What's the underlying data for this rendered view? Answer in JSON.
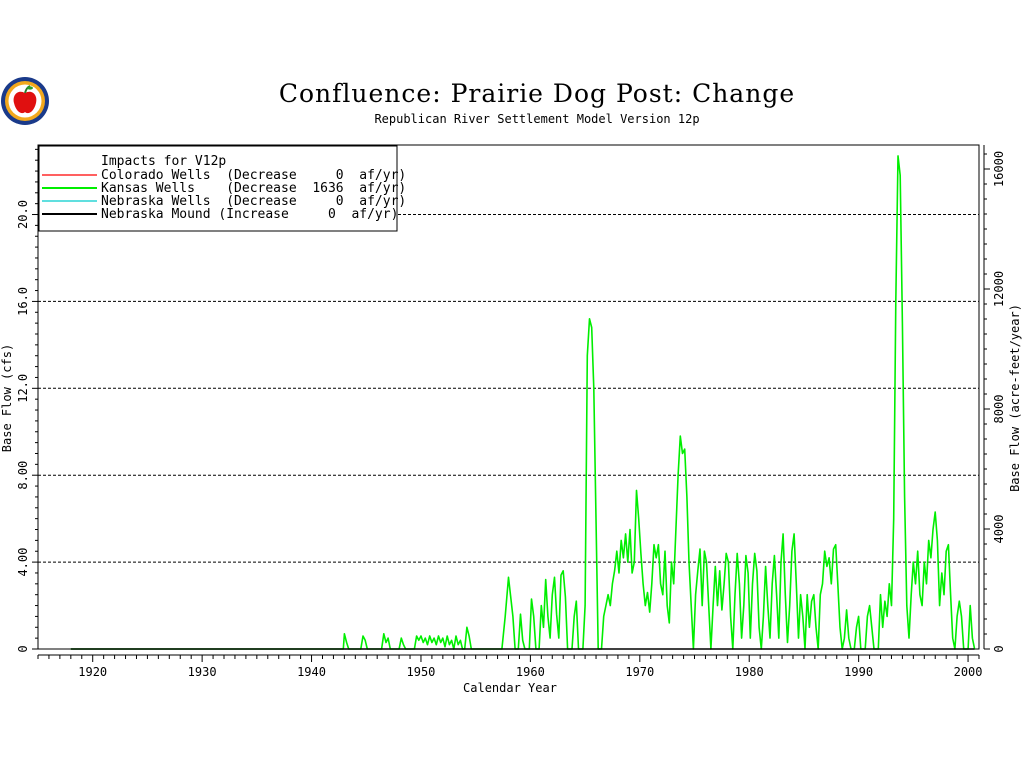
{
  "chart_data": {
    "type": "line",
    "title": "Confluence: Prairie Dog Post: Change",
    "subtitle": "Republican River Settlement Model Version 12p",
    "xlabel": "Calendar Year",
    "ylabel": "Base Flow (cfs)",
    "ylabel_right": "Base Flow (acre-feet/year)",
    "xlim": [
      1915,
      2001
    ],
    "ylim": [
      0,
      23.2
    ],
    "ylim_right": [
      0,
      16800
    ],
    "grid": "horizontal dashed",
    "legend_position": "top-left",
    "x_ticks": [
      "1920",
      "1930",
      "1940",
      "1950",
      "1960",
      "1970",
      "1980",
      "1990",
      "2000"
    ],
    "y_ticks": [
      "0",
      "4.00",
      "8.00",
      "12.0",
      "16.0",
      "20.0"
    ],
    "y_ticks_right": [
      "0",
      "4000",
      "8000",
      "12000",
      "16000"
    ],
    "legend": {
      "title": "Impacts for V12p",
      "entries": [
        {
          "label": "Colorado Wells  (Decrease     0  af/yr)",
          "color": "#ff0000"
        },
        {
          "label": "Kansas Wells    (Decrease  1636  af/yr)",
          "color": "#00ee00"
        },
        {
          "label": "Nebraska Wells  (Decrease     0  af/yr)",
          "color": "#00cccc"
        },
        {
          "label": "Nebraska Mound (Increase     0  af/yr)",
          "color": "#000000"
        }
      ]
    },
    "series": [
      {
        "name": "Kansas Wells",
        "color": "#00ee00",
        "points": [
          [
            1918.0,
            0
          ],
          [
            1942.9,
            0
          ],
          [
            1943.0,
            0.7
          ],
          [
            1943.2,
            0.3
          ],
          [
            1943.4,
            0
          ],
          [
            1944.5,
            0
          ],
          [
            1944.7,
            0.6
          ],
          [
            1944.9,
            0.4
          ],
          [
            1945.1,
            0
          ],
          [
            1946.4,
            0
          ],
          [
            1946.6,
            0.7
          ],
          [
            1946.8,
            0.3
          ],
          [
            1947.0,
            0.5
          ],
          [
            1947.2,
            0
          ],
          [
            1948.0,
            0
          ],
          [
            1948.2,
            0.5
          ],
          [
            1948.4,
            0.2
          ],
          [
            1948.6,
            0
          ],
          [
            1949.4,
            0
          ],
          [
            1949.6,
            0.6
          ],
          [
            1949.8,
            0.4
          ],
          [
            1950.0,
            0.6
          ],
          [
            1950.2,
            0.3
          ],
          [
            1950.4,
            0.5
          ],
          [
            1950.6,
            0.2
          ],
          [
            1950.8,
            0.6
          ],
          [
            1951.0,
            0.3
          ],
          [
            1951.2,
            0.5
          ],
          [
            1951.4,
            0.2
          ],
          [
            1951.6,
            0.6
          ],
          [
            1951.8,
            0.3
          ],
          [
            1952.0,
            0.5
          ],
          [
            1952.2,
            0.1
          ],
          [
            1952.4,
            0.6
          ],
          [
            1952.6,
            0.2
          ],
          [
            1952.8,
            0.4
          ],
          [
            1953.0,
            0
          ],
          [
            1953.2,
            0.6
          ],
          [
            1953.4,
            0.2
          ],
          [
            1953.6,
            0.4
          ],
          [
            1953.8,
            0
          ],
          [
            1954.0,
            0
          ],
          [
            1954.2,
            1.0
          ],
          [
            1954.4,
            0.6
          ],
          [
            1954.6,
            0
          ],
          [
            1957.4,
            0
          ],
          [
            1957.7,
            1.5
          ],
          [
            1958.0,
            3.3
          ],
          [
            1958.2,
            2.4
          ],
          [
            1958.4,
            1.5
          ],
          [
            1958.6,
            0
          ],
          [
            1958.9,
            0
          ],
          [
            1959.1,
            1.6
          ],
          [
            1959.3,
            0.4
          ],
          [
            1959.5,
            0
          ],
          [
            1959.9,
            0
          ],
          [
            1960.1,
            2.3
          ],
          [
            1960.3,
            1.5
          ],
          [
            1960.5,
            0
          ],
          [
            1960.8,
            0
          ],
          [
            1961.0,
            2.0
          ],
          [
            1961.2,
            1.0
          ],
          [
            1961.4,
            3.2
          ],
          [
            1961.6,
            1.5
          ],
          [
            1961.8,
            0.5
          ],
          [
            1962.0,
            2.5
          ],
          [
            1962.2,
            3.3
          ],
          [
            1962.4,
            1.6
          ],
          [
            1962.6,
            0.5
          ],
          [
            1962.8,
            3.4
          ],
          [
            1963.0,
            3.6
          ],
          [
            1963.2,
            2.4
          ],
          [
            1963.4,
            0
          ],
          [
            1963.8,
            0
          ],
          [
            1964.0,
            1.5
          ],
          [
            1964.2,
            2.2
          ],
          [
            1964.4,
            0
          ],
          [
            1964.8,
            0
          ],
          [
            1965.0,
            2.0
          ],
          [
            1965.2,
            13.5
          ],
          [
            1965.4,
            15.2
          ],
          [
            1965.6,
            14.8
          ],
          [
            1965.8,
            12.0
          ],
          [
            1966.0,
            6.0
          ],
          [
            1966.2,
            0
          ],
          [
            1966.5,
            0
          ],
          [
            1966.7,
            1.5
          ],
          [
            1966.9,
            2.0
          ],
          [
            1967.1,
            2.5
          ],
          [
            1967.3,
            2.0
          ],
          [
            1967.5,
            3.0
          ],
          [
            1967.7,
            3.6
          ],
          [
            1967.9,
            4.5
          ],
          [
            1968.1,
            3.5
          ],
          [
            1968.3,
            5.0
          ],
          [
            1968.5,
            4.2
          ],
          [
            1968.7,
            5.3
          ],
          [
            1968.9,
            4.0
          ],
          [
            1969.1,
            5.5
          ],
          [
            1969.3,
            3.5
          ],
          [
            1969.5,
            4.0
          ],
          [
            1969.7,
            7.3
          ],
          [
            1969.9,
            6.0
          ],
          [
            1970.1,
            4.4
          ],
          [
            1970.3,
            3.0
          ],
          [
            1970.5,
            2.0
          ],
          [
            1970.7,
            2.6
          ],
          [
            1970.9,
            1.7
          ],
          [
            1971.1,
            3.0
          ],
          [
            1971.3,
            4.8
          ],
          [
            1971.5,
            4.2
          ],
          [
            1971.7,
            4.8
          ],
          [
            1971.9,
            3.0
          ],
          [
            1972.1,
            2.5
          ],
          [
            1972.3,
            4.5
          ],
          [
            1972.5,
            2.0
          ],
          [
            1972.7,
            1.2
          ],
          [
            1972.9,
            4.0
          ],
          [
            1973.1,
            3.0
          ],
          [
            1973.3,
            5.5
          ],
          [
            1973.5,
            8.0
          ],
          [
            1973.7,
            9.8
          ],
          [
            1973.9,
            9.0
          ],
          [
            1974.1,
            9.2
          ],
          [
            1974.3,
            7.0
          ],
          [
            1974.5,
            4.0
          ],
          [
            1974.7,
            2.0
          ],
          [
            1974.9,
            0
          ],
          [
            1975.1,
            2.5
          ],
          [
            1975.3,
            3.6
          ],
          [
            1975.5,
            4.6
          ],
          [
            1975.7,
            2.0
          ],
          [
            1975.9,
            4.5
          ],
          [
            1976.1,
            4.0
          ],
          [
            1976.3,
            2.0
          ],
          [
            1976.5,
            0
          ],
          [
            1976.7,
            2.0
          ],
          [
            1976.9,
            3.8
          ],
          [
            1977.1,
            2.0
          ],
          [
            1977.3,
            3.6
          ],
          [
            1977.5,
            1.8
          ],
          [
            1977.7,
            3.0
          ],
          [
            1977.9,
            4.4
          ],
          [
            1978.1,
            4.0
          ],
          [
            1978.3,
            1.5
          ],
          [
            1978.5,
            0
          ],
          [
            1978.7,
            2.5
          ],
          [
            1978.9,
            4.4
          ],
          [
            1979.1,
            3.0
          ],
          [
            1979.3,
            0.5
          ],
          [
            1979.5,
            2.0
          ],
          [
            1979.7,
            4.3
          ],
          [
            1979.9,
            3.5
          ],
          [
            1980.1,
            0.5
          ],
          [
            1980.3,
            3.0
          ],
          [
            1980.5,
            4.4
          ],
          [
            1980.7,
            3.6
          ],
          [
            1980.9,
            1.0
          ],
          [
            1981.1,
            0
          ],
          [
            1981.3,
            1.5
          ],
          [
            1981.5,
            3.8
          ],
          [
            1981.7,
            2.0
          ],
          [
            1981.9,
            0.5
          ],
          [
            1982.1,
            3.0
          ],
          [
            1982.3,
            4.3
          ],
          [
            1982.5,
            2.5
          ],
          [
            1982.7,
            0.5
          ],
          [
            1982.9,
            4.0
          ],
          [
            1983.1,
            5.3
          ],
          [
            1983.3,
            2.5
          ],
          [
            1983.5,
            0.3
          ],
          [
            1983.7,
            2.0
          ],
          [
            1983.9,
            4.5
          ],
          [
            1984.1,
            5.3
          ],
          [
            1984.3,
            3.0
          ],
          [
            1984.5,
            0.5
          ],
          [
            1984.7,
            2.5
          ],
          [
            1984.9,
            1.5
          ],
          [
            1985.1,
            0
          ],
          [
            1985.3,
            2.5
          ],
          [
            1985.5,
            1.0
          ],
          [
            1985.7,
            2.2
          ],
          [
            1985.9,
            2.5
          ],
          [
            1986.1,
            1.0
          ],
          [
            1986.3,
            0
          ],
          [
            1986.5,
            2.5
          ],
          [
            1986.7,
            3.0
          ],
          [
            1986.9,
            4.5
          ],
          [
            1987.1,
            3.8
          ],
          [
            1987.3,
            4.2
          ],
          [
            1987.5,
            3.0
          ],
          [
            1987.7,
            4.6
          ],
          [
            1987.9,
            4.8
          ],
          [
            1988.1,
            3.0
          ],
          [
            1988.3,
            1.0
          ],
          [
            1988.5,
            0
          ],
          [
            1988.7,
            0.5
          ],
          [
            1988.9,
            1.8
          ],
          [
            1989.1,
            0.5
          ],
          [
            1989.3,
            0
          ],
          [
            1989.6,
            0
          ],
          [
            1989.8,
            1.0
          ],
          [
            1990.0,
            1.5
          ],
          [
            1990.2,
            0
          ],
          [
            1990.6,
            0
          ],
          [
            1990.8,
            1.5
          ],
          [
            1991.0,
            2.0
          ],
          [
            1991.2,
            1.0
          ],
          [
            1991.4,
            0
          ],
          [
            1991.8,
            0
          ],
          [
            1992.0,
            2.5
          ],
          [
            1992.2,
            1.0
          ],
          [
            1992.4,
            2.2
          ],
          [
            1992.6,
            1.5
          ],
          [
            1992.8,
            3.0
          ],
          [
            1993.0,
            2.0
          ],
          [
            1993.2,
            6.0
          ],
          [
            1993.4,
            16.0
          ],
          [
            1993.6,
            22.7
          ],
          [
            1993.8,
            21.8
          ],
          [
            1994.0,
            15.0
          ],
          [
            1994.2,
            7.0
          ],
          [
            1994.4,
            2.0
          ],
          [
            1994.6,
            0.5
          ],
          [
            1994.8,
            2.5
          ],
          [
            1995.0,
            4.0
          ],
          [
            1995.2,
            3.0
          ],
          [
            1995.4,
            4.5
          ],
          [
            1995.6,
            2.5
          ],
          [
            1995.8,
            2.0
          ],
          [
            1996.0,
            4.0
          ],
          [
            1996.2,
            3.0
          ],
          [
            1996.4,
            5.0
          ],
          [
            1996.6,
            4.2
          ],
          [
            1996.8,
            5.5
          ],
          [
            1997.0,
            6.3
          ],
          [
            1997.2,
            5.0
          ],
          [
            1997.4,
            2.0
          ],
          [
            1997.6,
            3.5
          ],
          [
            1997.8,
            2.5
          ],
          [
            1998.0,
            4.5
          ],
          [
            1998.2,
            4.8
          ],
          [
            1998.4,
            2.5
          ],
          [
            1998.6,
            0.5
          ],
          [
            1998.8,
            0
          ],
          [
            1999.0,
            1.5
          ],
          [
            1999.2,
            2.2
          ],
          [
            1999.4,
            1.5
          ],
          [
            1999.6,
            0
          ],
          [
            2000.0,
            0
          ],
          [
            2000.2,
            2.0
          ],
          [
            2000.4,
            0.5
          ],
          [
            2000.6,
            0
          ]
        ]
      },
      {
        "name": "Nebraska Mound",
        "color": "#000000",
        "points": [
          [
            1918.0,
            0
          ],
          [
            2000.6,
            0
          ]
        ]
      }
    ]
  }
}
